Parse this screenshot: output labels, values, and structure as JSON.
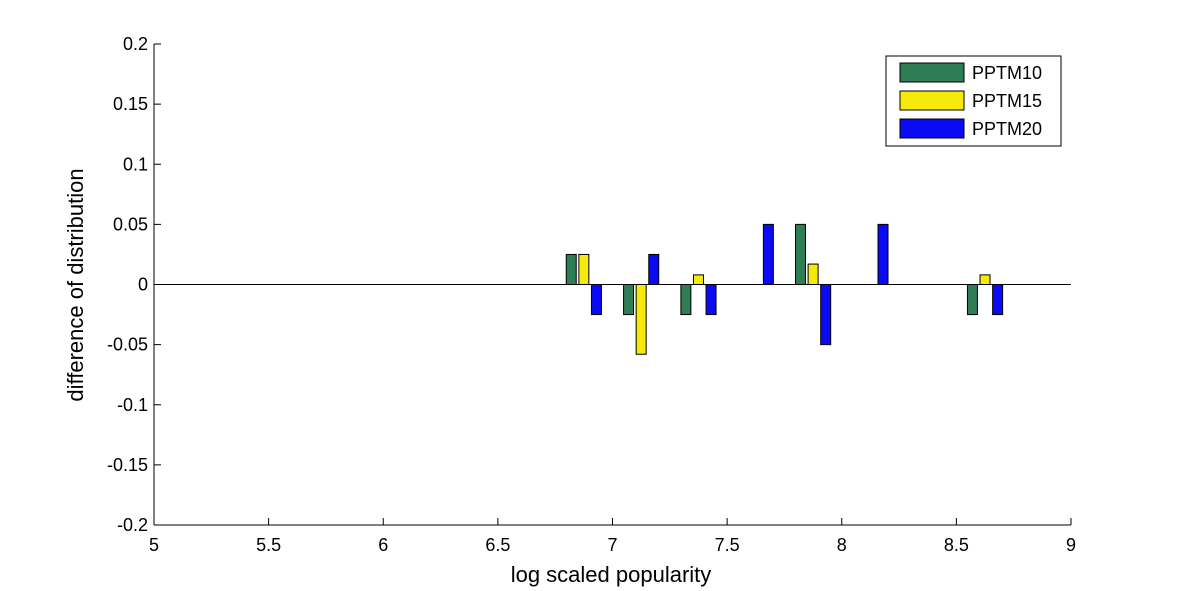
{
  "chart_data": {
    "type": "bar",
    "xlabel": "log scaled popularity",
    "ylabel": "difference of distribution",
    "xlim": [
      5,
      9
    ],
    "ylim": [
      -0.2,
      0.2
    ],
    "xticks": [
      "5",
      "5.5",
      "6",
      "6.5",
      "7",
      "7.5",
      "8",
      "8.5",
      "9"
    ],
    "yticks": [
      "-0.2",
      "-0.15",
      "-0.1",
      "-0.05",
      "0",
      "0.05",
      "0.1",
      "0.15",
      "0.2"
    ],
    "grid": false,
    "legend_position": "top-right",
    "categories": [
      6.875,
      7.125,
      7.375,
      7.625,
      7.875,
      8.125,
      8.375,
      8.625
    ],
    "series": [
      {
        "name": "PPTM10",
        "color": "#2e7d55",
        "values": [
          0.025,
          -0.025,
          -0.025,
          0,
          0.05,
          0,
          0,
          -0.025
        ]
      },
      {
        "name": "PPTM15",
        "color": "#f5ea0a",
        "values": [
          0.025,
          -0.058,
          0.008,
          0,
          0.017,
          0,
          0,
          0.008
        ]
      },
      {
        "name": "PPTM20",
        "color": "#0a0af5",
        "values": [
          -0.025,
          0.025,
          -0.025,
          0.05,
          -0.05,
          0.05,
          0,
          -0.025
        ]
      }
    ]
  }
}
